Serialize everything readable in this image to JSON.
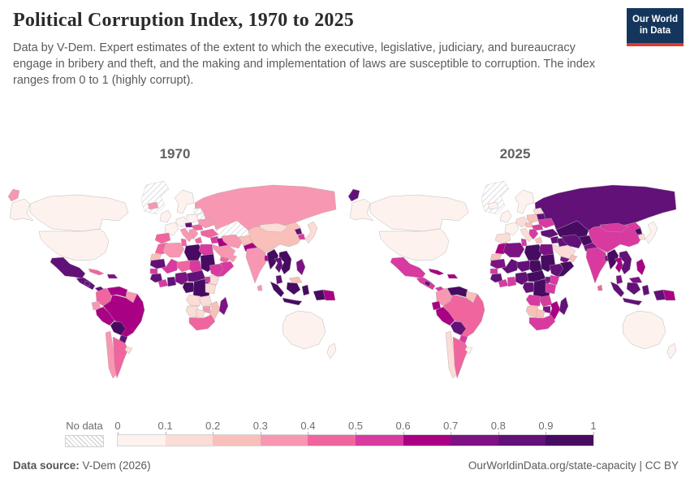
{
  "header": {
    "title": "Political Corruption Index, 1970 to 2025",
    "subtitle": "Data by V-Dem. Expert estimates of the extent to which the executive, legislative, judiciary, and bureaucracy engage in bribery and theft, and the making and implementation of laws are susceptible to corruption. The index ranges from 0 to 1 (highly corrupt).",
    "logo": {
      "line1": "Our World",
      "line2": "in Data",
      "bg_color": "#15365c",
      "accent_color": "#df392f"
    }
  },
  "maps": {
    "left_year": "1970",
    "right_year": "2025"
  },
  "legend": {
    "no_data_label": "No data",
    "ticks": [
      "0",
      "0.1",
      "0.2",
      "0.3",
      "0.4",
      "0.5",
      "0.6",
      "0.7",
      "0.8",
      "0.9",
      "1"
    ]
  },
  "footer": {
    "source_label": "Data source:",
    "source_value": " V-Dem (2026)",
    "right_text": "OurWorldinData.org/state-capacity | CC BY"
  },
  "chart_data": {
    "type": "choropleth",
    "title": "Political Corruption Index, 1970 to 2025",
    "years": [
      "1970",
      "2025"
    ],
    "value_range": [
      0,
      1
    ],
    "bin_edges": [
      0,
      0.1,
      0.2,
      0.3,
      0.4,
      0.5,
      0.6,
      0.7,
      0.8,
      0.9,
      1
    ],
    "palette": [
      "#fdf2ee",
      "#fbdcd6",
      "#f8c0b8",
      "#f897b2",
      "#f1659e",
      "#d83aa0",
      "#a90084",
      "#7d1284",
      "#621178",
      "#470b61"
    ],
    "no_data_style": "gray-hatch",
    "border_color": "#aaaaaa",
    "regions": [
      {
        "name": "russia",
        "1970": 0.35,
        "2025": 0.85
      },
      {
        "name": "chukotka-wrap",
        "1970": 0.35,
        "2025": 0.85
      },
      {
        "name": "canada",
        "1970": 0.05,
        "2025": 0.05
      },
      {
        "name": "usa",
        "1970": 0.05,
        "2025": 0.05
      },
      {
        "name": "alaska",
        "1970": 0.05,
        "2025": 0.05
      },
      {
        "name": "greenland",
        "1970": null,
        "2025": null
      },
      {
        "name": "mexico",
        "1970": 0.85,
        "2025": 0.55
      },
      {
        "name": "central-america",
        "1970": 0.85,
        "2025": 0.55
      },
      {
        "name": "nicaragua",
        "1970": 0.85,
        "2025": 0.85
      },
      {
        "name": "panama",
        "1970": 0.85,
        "2025": 0.55
      },
      {
        "name": "cuba",
        "1970": 0.45,
        "2025": 0.65
      },
      {
        "name": "hispaniola",
        "1970": 0.75,
        "2025": 0.65
      },
      {
        "name": "colombia",
        "1970": 0.45,
        "2025": 0.35
      },
      {
        "name": "venezuela",
        "1970": 0.65,
        "2025": 0.95
      },
      {
        "name": "guyanas",
        "1970": 0.35,
        "2025": 0.25
      },
      {
        "name": "ecuador",
        "1970": 0.35,
        "2025": 0.65
      },
      {
        "name": "peru",
        "1970": 0.65,
        "2025": 0.65
      },
      {
        "name": "brazil",
        "1970": 0.65,
        "2025": 0.45
      },
      {
        "name": "bolivia",
        "1970": 0.95,
        "2025": 0.85
      },
      {
        "name": "paraguay",
        "1970": 0.85,
        "2025": 0.55
      },
      {
        "name": "chile",
        "1970": 0.35,
        "2025": 0.15
      },
      {
        "name": "argentina",
        "1970": 0.45,
        "2025": 0.45
      },
      {
        "name": "uruguay",
        "1970": 0.15,
        "2025": 0.05
      },
      {
        "name": "iceland",
        "1970": 0.35,
        "2025": 0.05
      },
      {
        "name": "uk-ireland",
        "1970": 0.05,
        "2025": 0.05
      },
      {
        "name": "scandinavia",
        "1970": 0.05,
        "2025": 0.05
      },
      {
        "name": "france",
        "1970": 0.05,
        "2025": 0.05
      },
      {
        "name": "iberia",
        "1970": 0.45,
        "2025": 0.15
      },
      {
        "name": "central-europe",
        "1970": 0.05,
        "2025": 0.15
      },
      {
        "name": "italy",
        "1970": 0.35,
        "2025": 0.15
      },
      {
        "name": "eastern-europe",
        "1970": 0.05,
        "2025": 0.25
      },
      {
        "name": "czech-area",
        "1970": 0.85,
        "2025": 0.25
      },
      {
        "name": "danube",
        "1970": 0.45,
        "2025": 0.55
      },
      {
        "name": "balkans",
        "1970": 0.35,
        "2025": 0.55
      },
      {
        "name": "greece",
        "1970": 0.45,
        "2025": 0.25
      },
      {
        "name": "baltics",
        "1970": null,
        "2025": 0.15
      },
      {
        "name": "belarus",
        "1970": null,
        "2025": 0.85
      },
      {
        "name": "ukraine",
        "1970": 0.35,
        "2025": 0.55
      },
      {
        "name": "central-asia",
        "1970": null,
        "2025": 0.95
      },
      {
        "name": "turkey",
        "1970": 0.45,
        "2025": 0.85
      },
      {
        "name": "syria-levant",
        "1970": 0.55,
        "2025": 0.85
      },
      {
        "name": "iraq",
        "1970": 0.65,
        "2025": 0.85
      },
      {
        "name": "saudi-arabia",
        "1970": 0.35,
        "2025": 0.15
      },
      {
        "name": "yemen",
        "1970": 0.45,
        "2025": 0.75
      },
      {
        "name": "oman",
        "1970": 0.35,
        "2025": 0.25
      },
      {
        "name": "iran",
        "1970": 0.35,
        "2025": 0.85
      },
      {
        "name": "afghanistan",
        "1970": 0.25,
        "2025": 0.95
      },
      {
        "name": "pakistan",
        "1970": 0.65,
        "2025": 0.75
      },
      {
        "name": "india",
        "1970": 0.35,
        "2025": 0.55
      },
      {
        "name": "bangladesh",
        "1970": 0.65,
        "2025": 0.75
      },
      {
        "name": "sri-lanka",
        "1970": 0.35,
        "2025": 0.45
      },
      {
        "name": "china",
        "1970": 0.25,
        "2025": 0.55
      },
      {
        "name": "mongolia",
        "1970": 0.15,
        "2025": 0.55
      },
      {
        "name": "north-korea",
        "1970": 0.85,
        "2025": 0.95
      },
      {
        "name": "south-korea",
        "1970": 0.55,
        "2025": 0.15
      },
      {
        "name": "japan",
        "1970": 0.15,
        "2025": 0.05
      },
      {
        "name": "myanmar",
        "1970": 0.95,
        "2025": 0.95
      },
      {
        "name": "thailand",
        "1970": 0.85,
        "2025": 0.65
      },
      {
        "name": "indochina",
        "1970": 0.95,
        "2025": 0.85
      },
      {
        "name": "malay-peninsula",
        "1970": 0.85,
        "2025": 0.75
      },
      {
        "name": "malaysia-borneo",
        "1970": 0.25,
        "2025": 0.75
      },
      {
        "name": "indonesia",
        "1970": 0.95,
        "2025": 0.85
      },
      {
        "name": "philippines",
        "1970": 0.75,
        "2025": 0.65
      },
      {
        "name": "papua-new-guinea",
        "1970": 0.65,
        "2025": 0.65
      },
      {
        "name": "australia",
        "1970": 0.05,
        "2025": 0.05
      },
      {
        "name": "new-zealand",
        "1970": 0.05,
        "2025": 0.05
      },
      {
        "name": "morocco",
        "1970": 0.45,
        "2025": 0.65
      },
      {
        "name": "western-sahara",
        "1970": 0.25,
        "2025": 0.25
      },
      {
        "name": "algeria",
        "1970": 0.35,
        "2025": 0.75
      },
      {
        "name": "tunisia",
        "1970": 0.45,
        "2025": 0.55
      },
      {
        "name": "libya",
        "1970": 0.95,
        "2025": 0.95
      },
      {
        "name": "egypt",
        "1970": 0.55,
        "2025": 0.75
      },
      {
        "name": "mauritania",
        "1970": 0.85,
        "2025": 0.75
      },
      {
        "name": "mali",
        "1970": 0.55,
        "2025": 0.85
      },
      {
        "name": "niger",
        "1970": 0.45,
        "2025": 0.85
      },
      {
        "name": "chad",
        "1970": 0.55,
        "2025": 0.95
      },
      {
        "name": "sudan",
        "1970": 0.95,
        "2025": 0.95
      },
      {
        "name": "senegal",
        "1970": 0.55,
        "2025": 0.55
      },
      {
        "name": "guinea-group",
        "1970": 0.85,
        "2025": 0.85
      },
      {
        "name": "ivory-liberia",
        "1970": 0.55,
        "2025": 0.55
      },
      {
        "name": "ghana-togo-benin",
        "1970": 0.85,
        "2025": 0.55
      },
      {
        "name": "nigeria",
        "1970": 0.75,
        "2025": 0.85
      },
      {
        "name": "cameroon-car",
        "1970": 0.85,
        "2025": 0.95
      },
      {
        "name": "gabon-congo",
        "1970": 0.95,
        "2025": 0.85
      },
      {
        "name": "drc",
        "1970": 0.95,
        "2025": 0.95
      },
      {
        "name": "ethiopia",
        "1970": 0.55,
        "2025": 0.85
      },
      {
        "name": "somalia",
        "1970": 0.55,
        "2025": 0.95
      },
      {
        "name": "kenya",
        "1970": 0.15,
        "2025": 0.55
      },
      {
        "name": "uganda",
        "1970": 0.55,
        "2025": 0.75
      },
      {
        "name": "tanzania",
        "1970": 0.15,
        "2025": 0.55
      },
      {
        "name": "angola",
        "1970": 0.15,
        "2025": 0.55
      },
      {
        "name": "zambia",
        "1970": 0.15,
        "2025": 0.55
      },
      {
        "name": "zimbabwe",
        "1970": 0.35,
        "2025": 0.75
      },
      {
        "name": "mozambique",
        "1970": 0.25,
        "2025": 0.65
      },
      {
        "name": "namibia",
        "1970": 0.15,
        "2025": 0.25
      },
      {
        "name": "botswana",
        "1970": 0.15,
        "2025": 0.25
      },
      {
        "name": "south-africa",
        "1970": 0.45,
        "2025": 0.55
      },
      {
        "name": "madagascar",
        "1970": 0.75,
        "2025": 0.85
      }
    ]
  }
}
